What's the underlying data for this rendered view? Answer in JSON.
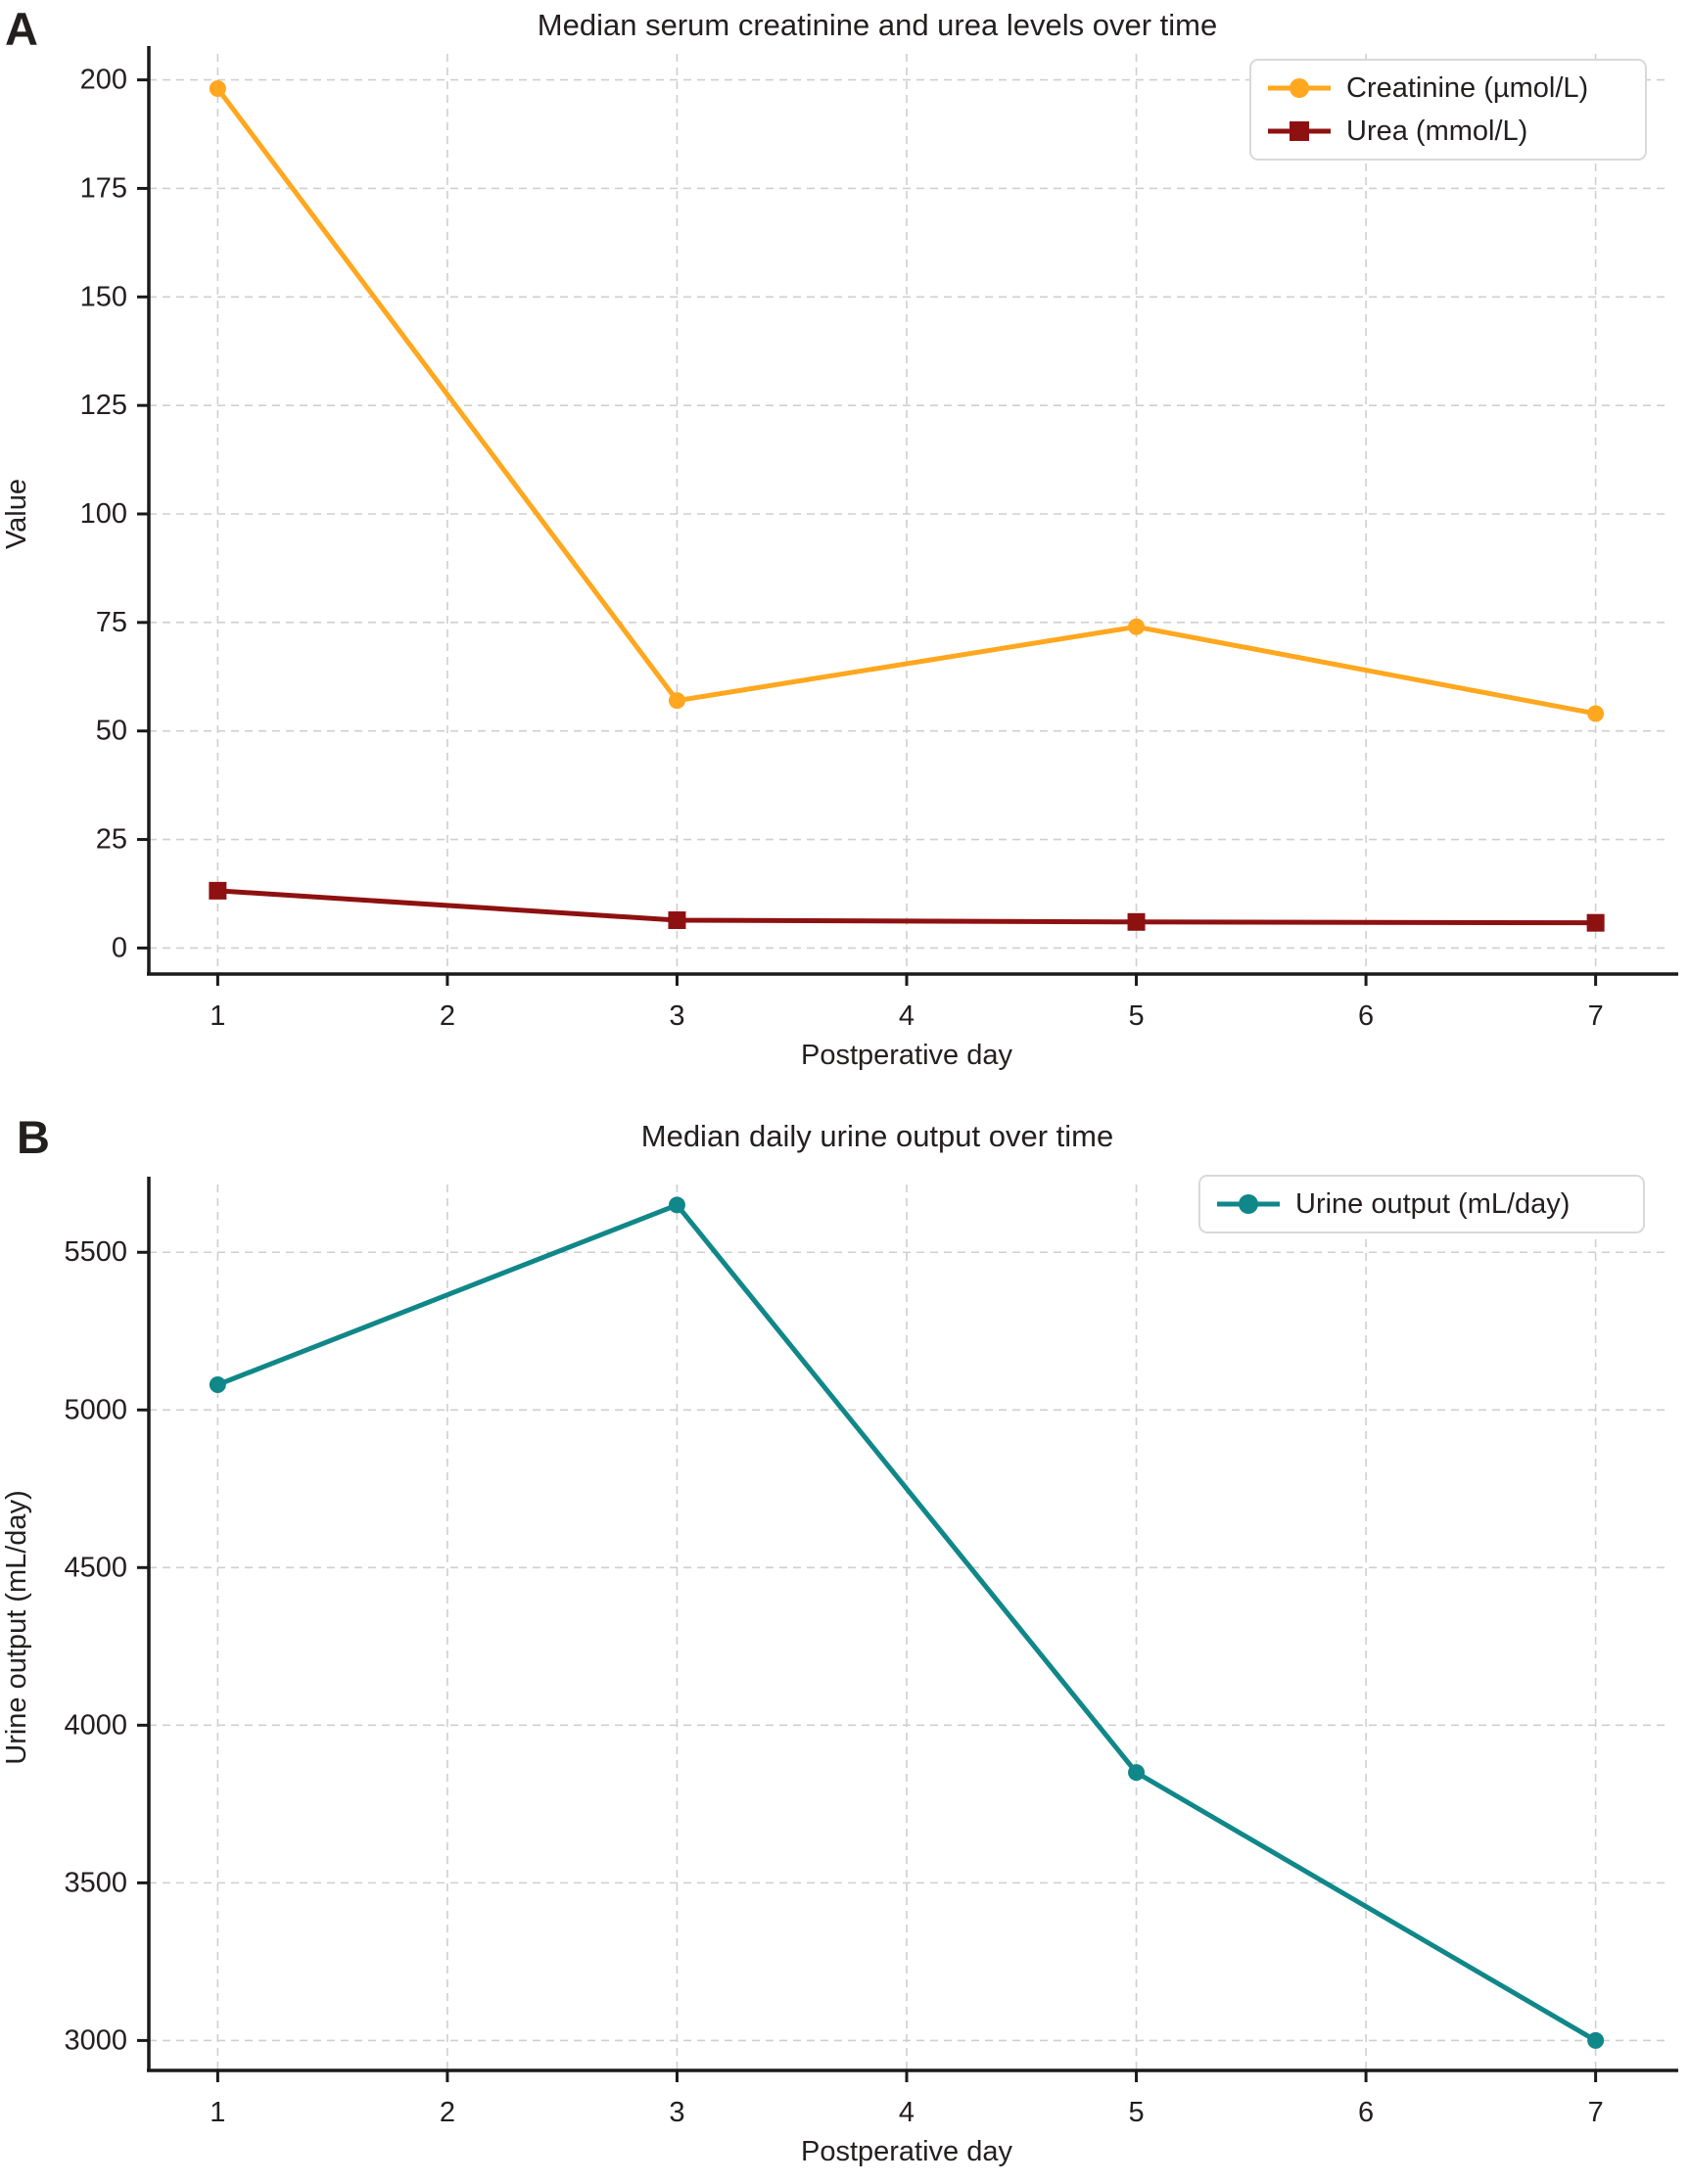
{
  "figure": {
    "panels": [
      {
        "label": "A"
      },
      {
        "label": "B"
      }
    ]
  },
  "chart_data": [
    {
      "type": "line",
      "title": "Median serum creatinine and urea levels over time",
      "xlabel": "Postperative day",
      "ylabel": "Value",
      "x": [
        1,
        3,
        5,
        7
      ],
      "series": [
        {
          "name": "Creatinine (µmol/L)",
          "values": [
            198,
            57,
            74,
            54
          ],
          "color": "#FFA71E",
          "marker": "circle"
        },
        {
          "name": "Urea (mmol/L)",
          "values": [
            13.2,
            6.4,
            6.0,
            5.8
          ],
          "color": "#8E1111",
          "marker": "square"
        }
      ],
      "xlim": [
        0.7,
        7.3
      ],
      "ylim": [
        -6,
        206
      ],
      "xticks": [
        1,
        2,
        3,
        4,
        5,
        6,
        7
      ],
      "yticks": [
        0,
        25,
        50,
        75,
        100,
        125,
        150,
        175,
        200
      ],
      "grid": true,
      "legend_position": "top-right"
    },
    {
      "type": "line",
      "title": "Median daily urine output over time",
      "xlabel": "Postperative day",
      "ylabel": "Urine output (mL/day)",
      "x": [
        1,
        3,
        5,
        7
      ],
      "series": [
        {
          "name": "Urine output (mL/day)",
          "values": [
            5080,
            5650,
            3850,
            3000
          ],
          "color": "#108789",
          "marker": "circle"
        }
      ],
      "xlim": [
        0.7,
        7.3
      ],
      "ylim": [
        2905,
        5715
      ],
      "xticks": [
        1,
        2,
        3,
        4,
        5,
        6,
        7
      ],
      "yticks": [
        3000,
        3500,
        4000,
        4500,
        5000,
        5500
      ],
      "grid": true,
      "legend_position": "top-right"
    }
  ],
  "style": {
    "grid_color": "#cfcfcf",
    "spine_color": "#1a1a1a",
    "text_color": "#241f1f",
    "legend_border_color": "#d9d9d9",
    "background": "#ffffff"
  }
}
